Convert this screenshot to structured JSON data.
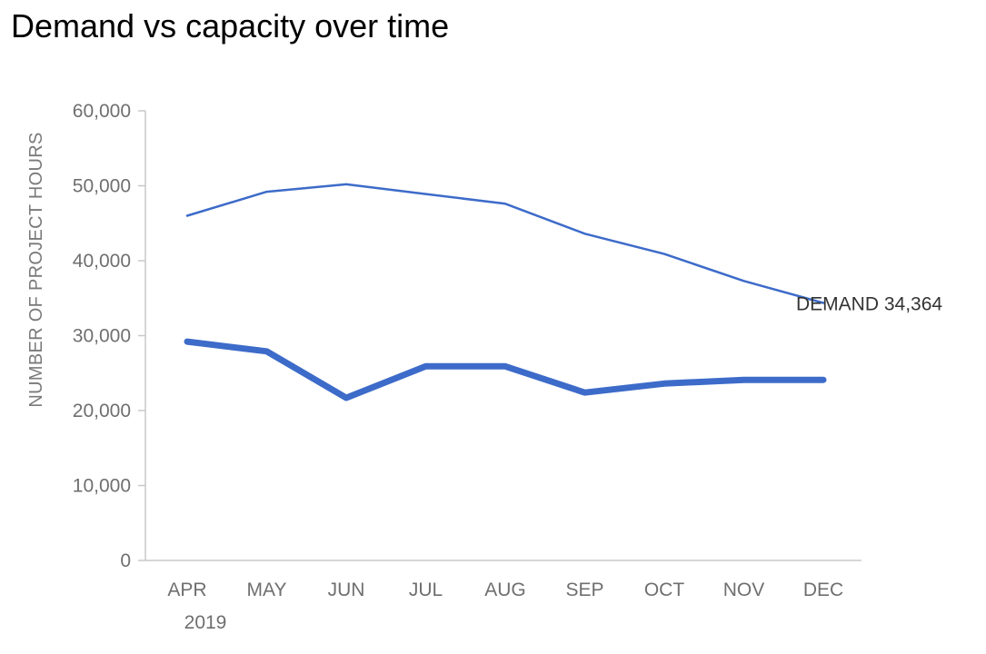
{
  "chart_data": {
    "type": "line",
    "title": "Demand vs capacity over time",
    "ylabel": "NUMBER OF PROJECT HOURS",
    "categories": [
      "APR",
      "MAY",
      "JUN",
      "JUL",
      "AUG",
      "SEP",
      "OCT",
      "NOV",
      "DEC"
    ],
    "category_sublabels": [
      "2019",
      "",
      "",
      "",
      "",
      "",
      "",
      "",
      ""
    ],
    "ylim": [
      0,
      60000
    ],
    "yticks": [
      0,
      10000,
      20000,
      30000,
      40000,
      50000,
      60000
    ],
    "ytick_labels": [
      "0",
      "10,000",
      "20,000",
      "30,000",
      "40,000",
      "50,000",
      "60,000"
    ],
    "grid": false,
    "series": [
      {
        "values": [
          46000,
          49200,
          50200,
          48900,
          47600,
          43600,
          40900,
          37300,
          34364
        ],
        "color": "#3d6bc9",
        "end_label": "DEMAND 34,364"
      },
      {
        "values": [
          29200,
          27900,
          21700,
          25900,
          25900,
          22400,
          23600,
          24100,
          24100
        ],
        "color": "#3d6bc9"
      }
    ]
  }
}
